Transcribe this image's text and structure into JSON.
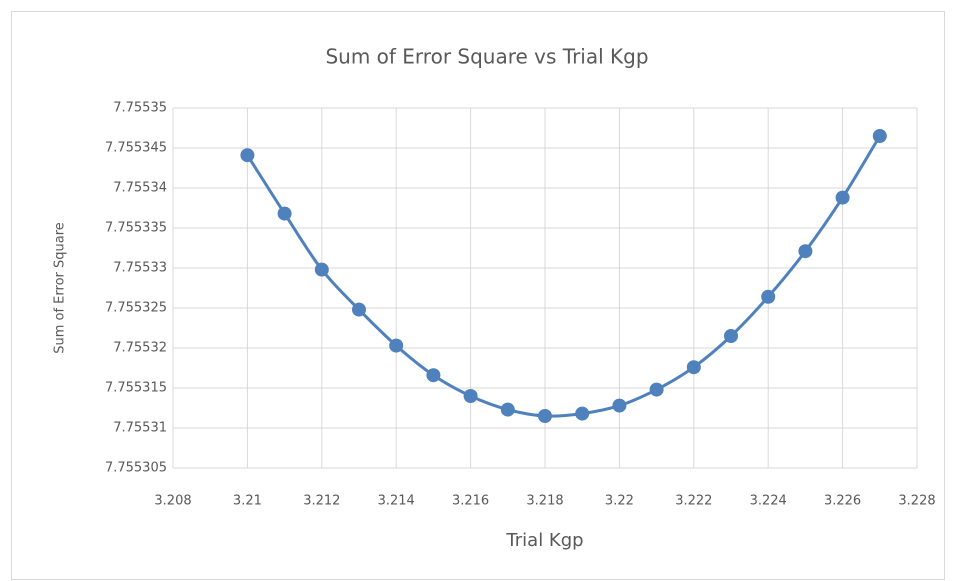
{
  "chart_data": {
    "type": "line",
    "title": "Sum of Error Square vs Trial Kgp",
    "x_label": "Trial Kgp",
    "y_label": "Sum of Error Square",
    "x": [
      3.21,
      3.211,
      3.212,
      3.213,
      3.214,
      3.215,
      3.216,
      3.217,
      3.218,
      3.219,
      3.22,
      3.221,
      3.222,
      3.223,
      3.224,
      3.225,
      3.226,
      3.227
    ],
    "values": [
      7.7553441,
      7.7553368,
      7.7553298,
      7.7553248,
      7.7553203,
      7.7553166,
      7.755314,
      7.7553123,
      7.7553115,
      7.7553118,
      7.7553128,
      7.7553148,
      7.7553176,
      7.7553215,
      7.7553264,
      7.7553321,
      7.7553388,
      7.7553465
    ],
    "color": "#4f81bd",
    "xlim": [
      3.208,
      3.228
    ],
    "xticks": [
      3.208,
      3.21,
      3.212,
      3.214,
      3.216,
      3.218,
      3.22,
      3.222,
      3.224,
      3.226,
      3.228
    ],
    "ylim": [
      7.755305,
      7.75535
    ],
    "yticks": [
      7.755305,
      7.75531,
      7.755315,
      7.75532,
      7.755325,
      7.75533,
      7.755335,
      7.75534,
      7.755345,
      7.75535
    ],
    "grid": true
  }
}
